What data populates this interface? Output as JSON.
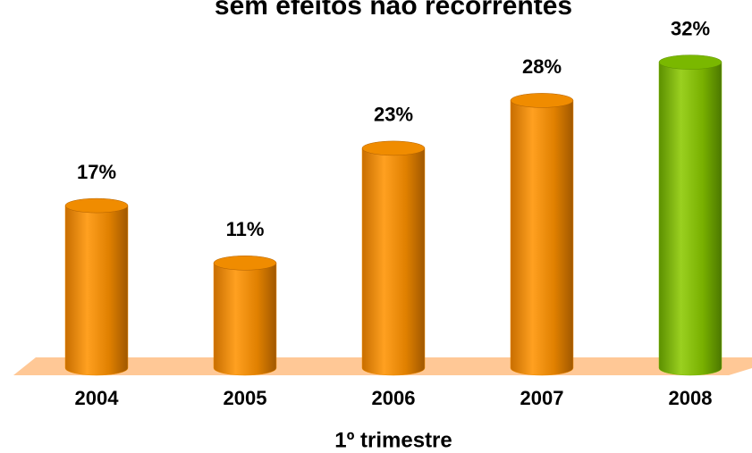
{
  "chart_data": {
    "type": "bar",
    "title": "sem efeitos não recorrentes",
    "categories": [
      "2004",
      "2005",
      "2006",
      "2007",
      "2008"
    ],
    "values": [
      17,
      11,
      23,
      28,
      32
    ],
    "value_labels": [
      "17%",
      "11%",
      "23%",
      "28%",
      "32%"
    ],
    "colors": [
      "#f08c00",
      "#f08c00",
      "#f08c00",
      "#f08c00",
      "#7ab800"
    ],
    "xlabel": "1º trimestre"
  }
}
